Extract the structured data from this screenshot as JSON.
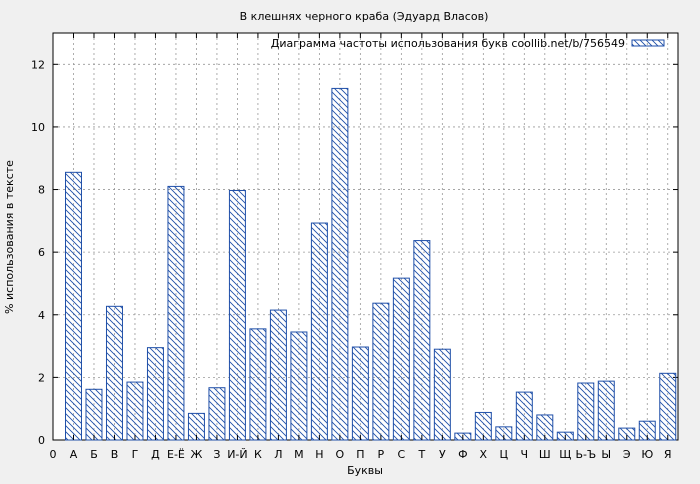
{
  "chart_data": {
    "type": "bar",
    "title": "В клешнях черного краба (Эдуард Власов)",
    "xlabel": "Буквы",
    "ylabel": "% использования в тексте",
    "legend": {
      "label": "Диаграмма частоты использования букв coollib.net/b/756549",
      "placement": "top-right"
    },
    "x_axis_start_label": "0",
    "categories": [
      "А",
      "Б",
      "В",
      "Г",
      "Д",
      "Е-Ё",
      "Ж",
      "З",
      "И-Й",
      "К",
      "Л",
      "М",
      "Н",
      "О",
      "П",
      "Р",
      "С",
      "Т",
      "У",
      "Ф",
      "Х",
      "Ц",
      "Ч",
      "Ш",
      "Щ",
      "Ь-Ъ",
      "Ы",
      "Э",
      "Ю",
      "Я"
    ],
    "values": [
      8.55,
      1.62,
      4.27,
      1.85,
      2.95,
      8.1,
      0.85,
      1.67,
      7.97,
      3.55,
      4.15,
      3.45,
      6.93,
      11.23,
      2.97,
      4.37,
      5.17,
      6.37,
      2.9,
      0.22,
      0.88,
      0.42,
      1.53,
      0.8,
      0.25,
      1.82,
      1.88,
      0.38,
      0.6,
      2.13
    ],
    "yticks": [
      0,
      2,
      4,
      6,
      8,
      10,
      12
    ],
    "ylim": [
      0,
      13
    ],
    "grid": true,
    "colors": {
      "bar_stroke": "#1f4fa8",
      "background": "#f0f0f0",
      "plot_bg": "#ffffff"
    }
  }
}
